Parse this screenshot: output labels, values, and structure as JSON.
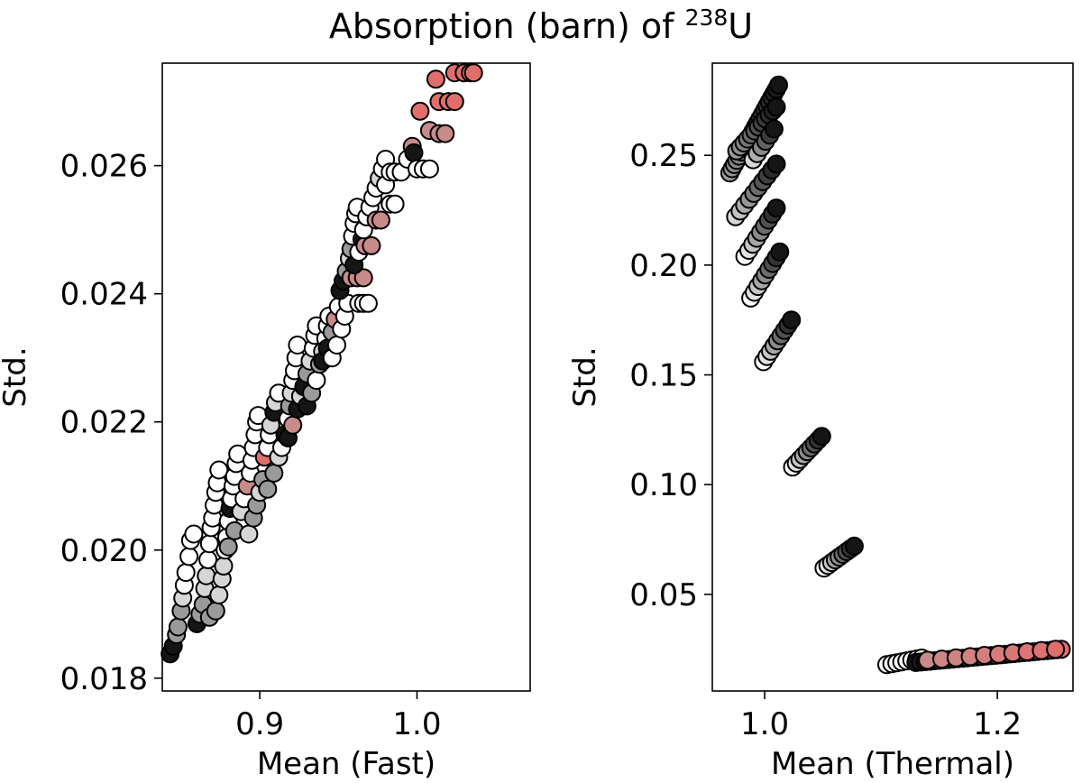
{
  "title_main": "Absorption (barn) of ",
  "title_superscript": "238",
  "title_element": "U",
  "colors": {
    "low": "#ffffff",
    "mid_gray": "#999999",
    "dark": "#111111",
    "high": "#e8706e",
    "edge": "#000000"
  },
  "chart_data": [
    {
      "type": "scatter",
      "name": "fast",
      "xlabel": "Mean (Fast)",
      "ylabel": "Std.",
      "xlim": [
        0.838,
        1.072
      ],
      "ylim": [
        0.0178,
        0.0276
      ],
      "xticks": [
        0.9,
        1.0
      ],
      "xtick_labels": [
        "0.9",
        "1.0"
      ],
      "yticks": [
        0.018,
        0.02,
        0.022,
        0.024,
        0.026
      ],
      "ytick_labels": [
        "0.018",
        "0.020",
        "0.022",
        "0.024",
        "0.026"
      ],
      "points": [
        {
          "x": 0.843,
          "y": 0.01838,
          "c": "dark"
        },
        {
          "x": 0.845,
          "y": 0.0185,
          "c": "dark"
        },
        {
          "x": 0.847,
          "y": 0.01868,
          "c": "gray"
        },
        {
          "x": 0.848,
          "y": 0.0188,
          "c": "gray"
        },
        {
          "x": 0.85,
          "y": 0.01905,
          "c": "gray"
        },
        {
          "x": 0.851,
          "y": 0.01925,
          "c": "light"
        },
        {
          "x": 0.852,
          "y": 0.01945,
          "c": "white"
        },
        {
          "x": 0.853,
          "y": 0.01965,
          "c": "white"
        },
        {
          "x": 0.855,
          "y": 0.0199,
          "c": "white"
        },
        {
          "x": 0.856,
          "y": 0.02015,
          "c": "white"
        },
        {
          "x": 0.858,
          "y": 0.02025,
          "c": "white"
        },
        {
          "x": 0.86,
          "y": 0.01885,
          "c": "dark"
        },
        {
          "x": 0.862,
          "y": 0.019,
          "c": "gray"
        },
        {
          "x": 0.864,
          "y": 0.01915,
          "c": "gray"
        },
        {
          "x": 0.865,
          "y": 0.0194,
          "c": "light"
        },
        {
          "x": 0.866,
          "y": 0.0196,
          "c": "light"
        },
        {
          "x": 0.867,
          "y": 0.01985,
          "c": "white"
        },
        {
          "x": 0.868,
          "y": 0.0201,
          "c": "white"
        },
        {
          "x": 0.869,
          "y": 0.02035,
          "c": "white"
        },
        {
          "x": 0.87,
          "y": 0.0205,
          "c": "white"
        },
        {
          "x": 0.871,
          "y": 0.0207,
          "c": "white"
        },
        {
          "x": 0.872,
          "y": 0.0209,
          "c": "white"
        },
        {
          "x": 0.873,
          "y": 0.02105,
          "c": "white"
        },
        {
          "x": 0.874,
          "y": 0.02125,
          "c": "white"
        },
        {
          "x": 0.868,
          "y": 0.01895,
          "c": "gray"
        },
        {
          "x": 0.872,
          "y": 0.01905,
          "c": "gray"
        },
        {
          "x": 0.874,
          "y": 0.0193,
          "c": "light"
        },
        {
          "x": 0.876,
          "y": 0.01955,
          "c": "light"
        },
        {
          "x": 0.877,
          "y": 0.01975,
          "c": "light"
        },
        {
          "x": 0.878,
          "y": 0.02,
          "c": "white"
        },
        {
          "x": 0.879,
          "y": 0.0202,
          "c": "white"
        },
        {
          "x": 0.88,
          "y": 0.02045,
          "c": "white"
        },
        {
          "x": 0.881,
          "y": 0.02065,
          "c": "dark"
        },
        {
          "x": 0.882,
          "y": 0.0208,
          "c": "white"
        },
        {
          "x": 0.883,
          "y": 0.021,
          "c": "white"
        },
        {
          "x": 0.884,
          "y": 0.02115,
          "c": "white"
        },
        {
          "x": 0.885,
          "y": 0.02135,
          "c": "white"
        },
        {
          "x": 0.886,
          "y": 0.0215,
          "c": "white"
        },
        {
          "x": 0.88,
          "y": 0.02005,
          "c": "gray"
        },
        {
          "x": 0.884,
          "y": 0.0203,
          "c": "gray"
        },
        {
          "x": 0.888,
          "y": 0.0206,
          "c": "light"
        },
        {
          "x": 0.89,
          "y": 0.0208,
          "c": "white"
        },
        {
          "x": 0.892,
          "y": 0.021,
          "c": "pink"
        },
        {
          "x": 0.894,
          "y": 0.0212,
          "c": "white"
        },
        {
          "x": 0.895,
          "y": 0.0214,
          "c": "white"
        },
        {
          "x": 0.896,
          "y": 0.0216,
          "c": "white"
        },
        {
          "x": 0.897,
          "y": 0.0218,
          "c": "white"
        },
        {
          "x": 0.898,
          "y": 0.022,
          "c": "white"
        },
        {
          "x": 0.899,
          "y": 0.0221,
          "c": "white"
        },
        {
          "x": 0.893,
          "y": 0.02025,
          "c": "light"
        },
        {
          "x": 0.896,
          "y": 0.0205,
          "c": "gray"
        },
        {
          "x": 0.898,
          "y": 0.0207,
          "c": "gray"
        },
        {
          "x": 0.9,
          "y": 0.0209,
          "c": "light"
        },
        {
          "x": 0.902,
          "y": 0.0211,
          "c": "gray"
        },
        {
          "x": 0.903,
          "y": 0.02145,
          "c": "red"
        },
        {
          "x": 0.905,
          "y": 0.0216,
          "c": "white"
        },
        {
          "x": 0.906,
          "y": 0.0218,
          "c": "white"
        },
        {
          "x": 0.907,
          "y": 0.02195,
          "c": "light"
        },
        {
          "x": 0.909,
          "y": 0.02215,
          "c": "dark"
        },
        {
          "x": 0.91,
          "y": 0.0223,
          "c": "light"
        },
        {
          "x": 0.912,
          "y": 0.02245,
          "c": "white"
        },
        {
          "x": 0.905,
          "y": 0.02095,
          "c": "gray"
        },
        {
          "x": 0.909,
          "y": 0.0212,
          "c": "gray"
        },
        {
          "x": 0.912,
          "y": 0.02145,
          "c": "light"
        },
        {
          "x": 0.914,
          "y": 0.0216,
          "c": "white"
        },
        {
          "x": 0.916,
          "y": 0.0218,
          "c": "dark"
        },
        {
          "x": 0.918,
          "y": 0.02205,
          "c": "white"
        },
        {
          "x": 0.919,
          "y": 0.02225,
          "c": "gray"
        },
        {
          "x": 0.92,
          "y": 0.02245,
          "c": "light"
        },
        {
          "x": 0.921,
          "y": 0.02265,
          "c": "white"
        },
        {
          "x": 0.922,
          "y": 0.0228,
          "c": "white"
        },
        {
          "x": 0.923,
          "y": 0.023,
          "c": "white"
        },
        {
          "x": 0.924,
          "y": 0.0232,
          "c": "white"
        },
        {
          "x": 0.918,
          "y": 0.02175,
          "c": "dark"
        },
        {
          "x": 0.921,
          "y": 0.02195,
          "c": "pink"
        },
        {
          "x": 0.924,
          "y": 0.0222,
          "c": "dark"
        },
        {
          "x": 0.926,
          "y": 0.0224,
          "c": "light"
        },
        {
          "x": 0.928,
          "y": 0.02255,
          "c": "dark"
        },
        {
          "x": 0.93,
          "y": 0.02275,
          "c": "gray"
        },
        {
          "x": 0.932,
          "y": 0.02295,
          "c": "light"
        },
        {
          "x": 0.934,
          "y": 0.02315,
          "c": "white"
        },
        {
          "x": 0.935,
          "y": 0.02335,
          "c": "white"
        },
        {
          "x": 0.936,
          "y": 0.0235,
          "c": "white"
        },
        {
          "x": 0.93,
          "y": 0.02225,
          "c": "dark"
        },
        {
          "x": 0.933,
          "y": 0.02245,
          "c": "gray"
        },
        {
          "x": 0.936,
          "y": 0.02265,
          "c": "white"
        },
        {
          "x": 0.938,
          "y": 0.0229,
          "c": "gray"
        },
        {
          "x": 0.94,
          "y": 0.0231,
          "c": "light"
        },
        {
          "x": 0.942,
          "y": 0.0233,
          "c": "white"
        },
        {
          "x": 0.943,
          "y": 0.0235,
          "c": "white"
        },
        {
          "x": 0.944,
          "y": 0.02365,
          "c": "white"
        },
        {
          "x": 0.94,
          "y": 0.02295,
          "c": "dark"
        },
        {
          "x": 0.943,
          "y": 0.02315,
          "c": "dark"
        },
        {
          "x": 0.946,
          "y": 0.0234,
          "c": "gray"
        },
        {
          "x": 0.948,
          "y": 0.0236,
          "c": "pink"
        },
        {
          "x": 0.95,
          "y": 0.0238,
          "c": "white"
        },
        {
          "x": 0.946,
          "y": 0.023,
          "c": "white"
        },
        {
          "x": 0.949,
          "y": 0.0232,
          "c": "white"
        },
        {
          "x": 0.952,
          "y": 0.02345,
          "c": "white"
        },
        {
          "x": 0.954,
          "y": 0.02365,
          "c": "white"
        },
        {
          "x": 0.956,
          "y": 0.02385,
          "c": "white"
        },
        {
          "x": 0.951,
          "y": 0.02405,
          "c": "dark"
        },
        {
          "x": 0.953,
          "y": 0.0242,
          "c": "dark"
        },
        {
          "x": 0.955,
          "y": 0.02435,
          "c": "gray"
        },
        {
          "x": 0.957,
          "y": 0.02455,
          "c": "light"
        },
        {
          "x": 0.958,
          "y": 0.0247,
          "c": "gray"
        },
        {
          "x": 0.959,
          "y": 0.0249,
          "c": "white"
        },
        {
          "x": 0.96,
          "y": 0.0251,
          "c": "white"
        },
        {
          "x": 0.961,
          "y": 0.02525,
          "c": "white"
        },
        {
          "x": 0.962,
          "y": 0.02535,
          "c": "white"
        },
        {
          "x": 0.963,
          "y": 0.02385,
          "c": "white"
        },
        {
          "x": 0.966,
          "y": 0.02385,
          "c": "white"
        },
        {
          "x": 0.969,
          "y": 0.02385,
          "c": "white"
        },
        {
          "x": 0.958,
          "y": 0.02425,
          "c": "pink"
        },
        {
          "x": 0.962,
          "y": 0.02425,
          "c": "pink"
        },
        {
          "x": 0.966,
          "y": 0.02425,
          "c": "pink"
        },
        {
          "x": 0.96,
          "y": 0.02445,
          "c": "dark"
        },
        {
          "x": 0.963,
          "y": 0.02465,
          "c": "white"
        },
        {
          "x": 0.965,
          "y": 0.02485,
          "c": "dark"
        },
        {
          "x": 0.967,
          "y": 0.02475,
          "c": "pink"
        },
        {
          "x": 0.971,
          "y": 0.02475,
          "c": "pink"
        },
        {
          "x": 0.966,
          "y": 0.025,
          "c": "white"
        },
        {
          "x": 0.968,
          "y": 0.0252,
          "c": "white"
        },
        {
          "x": 0.97,
          "y": 0.02535,
          "c": "white"
        },
        {
          "x": 0.972,
          "y": 0.0255,
          "c": "white"
        },
        {
          "x": 0.974,
          "y": 0.02565,
          "c": "white"
        },
        {
          "x": 0.976,
          "y": 0.0258,
          "c": "light"
        },
        {
          "x": 0.978,
          "y": 0.02595,
          "c": "white"
        },
        {
          "x": 0.98,
          "y": 0.0257,
          "c": "white"
        },
        {
          "x": 0.983,
          "y": 0.0254,
          "c": "white"
        },
        {
          "x": 0.986,
          "y": 0.0254,
          "c": "white"
        },
        {
          "x": 0.974,
          "y": 0.02515,
          "c": "pink"
        },
        {
          "x": 0.977,
          "y": 0.02515,
          "c": "pink"
        },
        {
          "x": 0.98,
          "y": 0.0261,
          "c": "white"
        },
        {
          "x": 0.983,
          "y": 0.0259,
          "c": "white"
        },
        {
          "x": 0.986,
          "y": 0.0259,
          "c": "white"
        },
        {
          "x": 0.99,
          "y": 0.0259,
          "c": "white"
        },
        {
          "x": 0.994,
          "y": 0.0261,
          "c": "white"
        },
        {
          "x": 0.997,
          "y": 0.0263,
          "c": "pink"
        },
        {
          "x": 0.998,
          "y": 0.0262,
          "c": "dark"
        },
        {
          "x": 1.0,
          "y": 0.02595,
          "c": "white"
        },
        {
          "x": 1.004,
          "y": 0.02595,
          "c": "white"
        },
        {
          "x": 1.008,
          "y": 0.02595,
          "c": "white"
        },
        {
          "x": 1.002,
          "y": 0.02685,
          "c": "red"
        },
        {
          "x": 1.008,
          "y": 0.02655,
          "c": "pink"
        },
        {
          "x": 1.014,
          "y": 0.0265,
          "c": "pink"
        },
        {
          "x": 1.018,
          "y": 0.0265,
          "c": "pink"
        },
        {
          "x": 1.014,
          "y": 0.027,
          "c": "red"
        },
        {
          "x": 1.02,
          "y": 0.027,
          "c": "red"
        },
        {
          "x": 1.024,
          "y": 0.027,
          "c": "red"
        },
        {
          "x": 1.012,
          "y": 0.02735,
          "c": "red"
        },
        {
          "x": 1.024,
          "y": 0.02745,
          "c": "red"
        },
        {
          "x": 1.03,
          "y": 0.02745,
          "c": "red"
        },
        {
          "x": 1.034,
          "y": 0.02745,
          "c": "red"
        },
        {
          "x": 1.036,
          "y": 0.02745,
          "c": "red"
        }
      ]
    },
    {
      "type": "scatter",
      "name": "thermal",
      "xlabel": "Mean (Thermal)",
      "ylabel": "Std.",
      "xlim": [
        0.955,
        1.265
      ],
      "ylim": [
        0.006,
        0.292
      ],
      "xticks": [
        1.0,
        1.2
      ],
      "xtick_labels": [
        "1.0",
        "1.2"
      ],
      "yticks": [
        0.05,
        0.1,
        0.15,
        0.2,
        0.25
      ],
      "ytick_labels": [
        "0.05",
        "0.10",
        "0.15",
        "0.20",
        "0.25"
      ],
      "clusters": [
        {
          "x0": 0.97,
          "x1": 1.012,
          "y0": 0.242,
          "y1": 0.282,
          "n": 22,
          "c0": "gray",
          "c1": "dark"
        },
        {
          "x0": 0.976,
          "x1": 1.01,
          "y0": 0.252,
          "y1": 0.272,
          "n": 12,
          "c0": "gray",
          "c1": "dark"
        },
        {
          "x0": 0.99,
          "x1": 1.008,
          "y0": 0.248,
          "y1": 0.262,
          "n": 6,
          "c0": "light",
          "c1": "dark"
        },
        {
          "x0": 0.975,
          "x1": 1.01,
          "y0": 0.222,
          "y1": 0.246,
          "n": 10,
          "c0": "light",
          "c1": "dark"
        },
        {
          "x0": 0.983,
          "x1": 1.01,
          "y0": 0.204,
          "y1": 0.226,
          "n": 9,
          "c0": "white",
          "c1": "dark"
        },
        {
          "x0": 0.988,
          "x1": 1.013,
          "y0": 0.185,
          "y1": 0.206,
          "n": 9,
          "c0": "white",
          "c1": "dark"
        },
        {
          "x0": 0.999,
          "x1": 1.023,
          "y0": 0.156,
          "y1": 0.175,
          "n": 9,
          "c0": "white",
          "c1": "dark"
        },
        {
          "x0": 1.024,
          "x1": 1.049,
          "y0": 0.108,
          "y1": 0.122,
          "n": 9,
          "c0": "white",
          "c1": "dark"
        },
        {
          "x0": 1.051,
          "x1": 1.077,
          "y0": 0.062,
          "y1": 0.072,
          "n": 9,
          "c0": "white",
          "c1": "dark"
        },
        {
          "x0": 1.105,
          "x1": 1.135,
          "y0": 0.018,
          "y1": 0.021,
          "n": 8,
          "c0": "white",
          "c1": "white"
        },
        {
          "x0": 1.13,
          "x1": 1.255,
          "y0": 0.019,
          "y1": 0.025,
          "n": 32,
          "c0": "dark",
          "c1": "red"
        },
        {
          "x0": 1.14,
          "x1": 1.25,
          "y0": 0.02,
          "y1": 0.025,
          "n": 10,
          "c0": "pink",
          "c1": "red"
        }
      ]
    }
  ]
}
